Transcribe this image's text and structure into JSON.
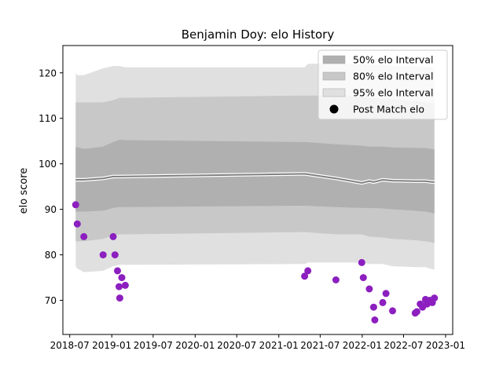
{
  "chart_data": {
    "type": "scatter",
    "title": "Benjamin Doy: elo History",
    "xlabel": "",
    "ylabel": "elo score",
    "xlim": [
      "2018-06-01",
      "2023-02-01"
    ],
    "ylim": [
      62.5,
      126
    ],
    "x_ticks": [
      "2018-07-01",
      "2019-01-01",
      "2019-07-01",
      "2020-01-01",
      "2020-07-01",
      "2021-01-01",
      "2021-07-01",
      "2022-01-01",
      "2022-07-01",
      "2023-01-01"
    ],
    "x_tick_labels": [
      "2018-07",
      "2019-01",
      "2019-07",
      "2020-01",
      "2020-07",
      "2021-01",
      "2021-07",
      "2022-01",
      "2022-07",
      "2023-01"
    ],
    "y_ticks": [
      70,
      80,
      90,
      100,
      110,
      120
    ],
    "y_tick_labels": [
      "70",
      "80",
      "90",
      "100",
      "110",
      "120"
    ],
    "grid": false,
    "legend_position": "top-right",
    "legend": [
      {
        "label": "50% elo Interval",
        "kind": "band",
        "color": "#b0b0b0"
      },
      {
        "label": "80% elo Interval",
        "kind": "band",
        "color": "#c8c8c8"
      },
      {
        "label": "95% elo Interval",
        "kind": "band",
        "color": "#e0e0e0"
      },
      {
        "label": "Post Match elo",
        "kind": "marker",
        "color": "#000000"
      }
    ],
    "colors": {
      "points": "#8c1fbf",
      "mean_line": "#808080",
      "mean_line_outline": "#ffffff",
      "band_50": "#b0b0b0",
      "band_80": "#c8c8c8",
      "band_95": "#e0e0e0"
    },
    "series": [
      {
        "name": "Post Match elo",
        "kind": "scatter",
        "x": [
          "2018-07-27",
          "2018-08-03",
          "2018-09-01",
          "2018-11-24",
          "2019-01-07",
          "2019-01-15",
          "2019-01-26",
          "2019-02-02",
          "2019-02-05",
          "2019-02-14",
          "2019-03-01",
          "2021-04-24",
          "2021-05-08",
          "2021-09-08",
          "2021-12-30",
          "2022-01-06",
          "2022-02-01",
          "2022-02-20",
          "2022-02-25",
          "2022-04-01",
          "2022-04-15",
          "2022-05-14",
          "2022-08-21",
          "2022-08-28",
          "2022-09-12",
          "2022-09-22",
          "2022-10-05",
          "2022-10-12",
          "2022-10-24",
          "2022-11-04",
          "2022-11-13"
        ],
        "y": [
          91,
          86.8,
          84,
          80,
          84,
          80,
          76.5,
          73,
          70.5,
          75,
          73.3,
          75.3,
          76.5,
          74.5,
          78.3,
          75,
          72.5,
          68.5,
          65.7,
          69.5,
          71.5,
          67.7,
          67.2,
          67.5,
          69.2,
          68.5,
          70.2,
          69.2,
          70,
          69.5,
          70.5
        ]
      },
      {
        "name": "Mean elo",
        "kind": "line",
        "x": [
          "2018-07-27",
          "2018-09-01",
          "2018-11-24",
          "2019-01-07",
          "2019-02-05",
          "2021-04-24",
          "2021-09-08",
          "2021-12-30",
          "2022-02-01",
          "2022-02-20",
          "2022-04-01",
          "2022-05-14",
          "2022-08-21",
          "2022-10-05",
          "2022-11-04",
          "2022-11-13"
        ],
        "y": [
          96.5,
          96.5,
          96.8,
          97.2,
          97.2,
          97.8,
          96.8,
          95.8,
          96.2,
          96,
          96.5,
          96.3,
          96.2,
          96.2,
          96,
          96
        ]
      }
    ],
    "bands": [
      {
        "name": "95% elo Interval",
        "x": [
          "2018-07-27",
          "2018-08-03",
          "2018-09-01",
          "2018-11-24",
          "2019-01-07",
          "2019-02-05",
          "2019-03-01",
          "2021-04-24",
          "2021-05-08",
          "2021-09-08",
          "2021-12-30",
          "2022-02-01",
          "2022-04-01",
          "2022-05-14",
          "2022-08-21",
          "2022-10-05",
          "2022-11-04",
          "2022-11-13"
        ],
        "lower": [
          77.5,
          77,
          76.2,
          76.5,
          77.5,
          77.8,
          77.8,
          78,
          78.3,
          78.3,
          78.3,
          78,
          78,
          77.5,
          77.3,
          77.3,
          76.8,
          76.8
        ],
        "upper": [
          120,
          119.5,
          119.5,
          121,
          121.5,
          121.5,
          121.2,
          121.2,
          122,
          122,
          122,
          121.8,
          121.8,
          121.5,
          121.5,
          121.3,
          121.2,
          121
        ]
      },
      {
        "name": "80% elo Interval",
        "x": [
          "2018-07-27",
          "2018-09-01",
          "2018-11-24",
          "2019-01-07",
          "2019-02-05",
          "2019-03-01",
          "2021-04-24",
          "2021-09-08",
          "2021-12-30",
          "2022-02-01",
          "2022-04-01",
          "2022-05-14",
          "2022-08-21",
          "2022-10-05",
          "2022-11-04",
          "2022-11-13"
        ],
        "lower": [
          83,
          83,
          83.5,
          84.3,
          84.5,
          84.5,
          85,
          84.5,
          84.5,
          84,
          83.8,
          83.5,
          83.2,
          83,
          82.7,
          82.6
        ],
        "upper": [
          113.5,
          113.5,
          113.5,
          114,
          114.5,
          114.5,
          115,
          115,
          114.8,
          114.5,
          114.3,
          114.2,
          113.8,
          113.5,
          113.3,
          113.2
        ]
      },
      {
        "name": "50% elo Interval",
        "x": [
          "2018-07-27",
          "2018-09-01",
          "2018-11-24",
          "2019-01-07",
          "2019-02-05",
          "2019-03-01",
          "2021-04-24",
          "2021-09-08",
          "2021-12-30",
          "2022-02-01",
          "2022-04-01",
          "2022-05-14",
          "2022-08-21",
          "2022-10-05",
          "2022-11-04",
          "2022-11-13"
        ],
        "lower": [
          89.5,
          89.5,
          89.7,
          90.3,
          90.5,
          90.5,
          90.8,
          90.5,
          90.3,
          90.3,
          90.2,
          90,
          89.7,
          89.5,
          89.2,
          89
        ],
        "upper": [
          103.7,
          103.3,
          103.8,
          104.8,
          105.3,
          105.2,
          104.8,
          104.3,
          104,
          103.8,
          103.8,
          103.6,
          103.5,
          103.5,
          103.2,
          103.2
        ]
      }
    ]
  }
}
